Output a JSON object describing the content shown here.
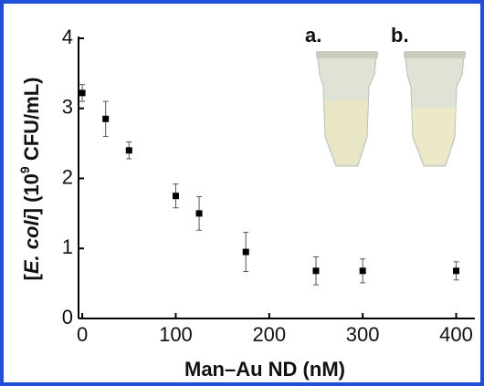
{
  "chart_data": {
    "type": "scatter",
    "xlabel": "Man–Au ND (nM)",
    "ylabel_parts": [
      "[",
      "E. coli",
      "] (10",
      "9",
      " CFU/mL)"
    ],
    "x": [
      0,
      25,
      50,
      100,
      125,
      175,
      250,
      300,
      400
    ],
    "values": [
      3.22,
      2.85,
      2.4,
      1.75,
      1.5,
      0.95,
      0.68,
      0.68,
      0.68
    ],
    "errors": [
      0.12,
      0.25,
      0.12,
      0.17,
      0.24,
      0.28,
      0.2,
      0.17,
      0.13
    ],
    "xlim": [
      -4,
      420
    ],
    "ylim": [
      0,
      4
    ],
    "xticks": [
      0,
      100,
      200,
      300,
      400
    ],
    "yticks": [
      0,
      1,
      2,
      3,
      4
    ],
    "annotations": [
      "a.",
      "b."
    ],
    "color": "#000000"
  }
}
